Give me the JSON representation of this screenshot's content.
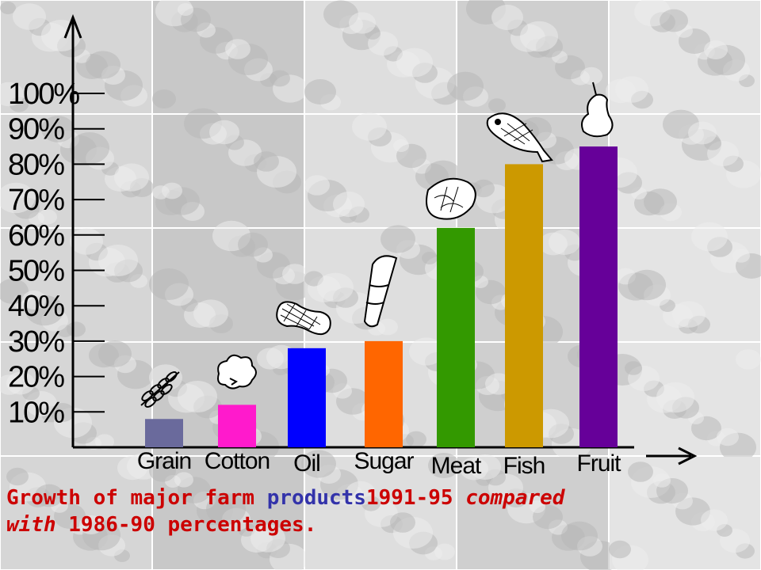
{
  "chart_data": {
    "type": "bar",
    "categories": [
      "Grain",
      "Cotton",
      "Oil",
      "Sugar",
      "Meat",
      "Fish",
      "Fruit"
    ],
    "values": [
      8,
      12,
      28,
      30,
      62,
      80,
      85
    ],
    "colors": [
      "#6a6a9c",
      "#ff1acc",
      "#0000ff",
      "#ff6600",
      "#339900",
      "#cc9900",
      "#660099"
    ],
    "yticks": [
      "10%",
      "20%",
      "30%",
      "40%",
      "50%",
      "60%",
      "70%",
      "80%",
      "90%",
      "100%"
    ],
    "ylim": [
      0,
      100
    ],
    "grid": false,
    "decorations": [
      "wheat-icon",
      "cotton-icon",
      "peanut-icon",
      "sugarcane-icon",
      "steak-icon",
      "fish-icon",
      "pear-icon"
    ]
  },
  "caption": {
    "part1": "Growth of major farm ",
    "part2": "products",
    "part3": "1991-95 ",
    "part4": "compared",
    "part5": "with",
    "part6": " 1986-90 percentages."
  },
  "background": {
    "description_color": "#cfcfcf"
  }
}
